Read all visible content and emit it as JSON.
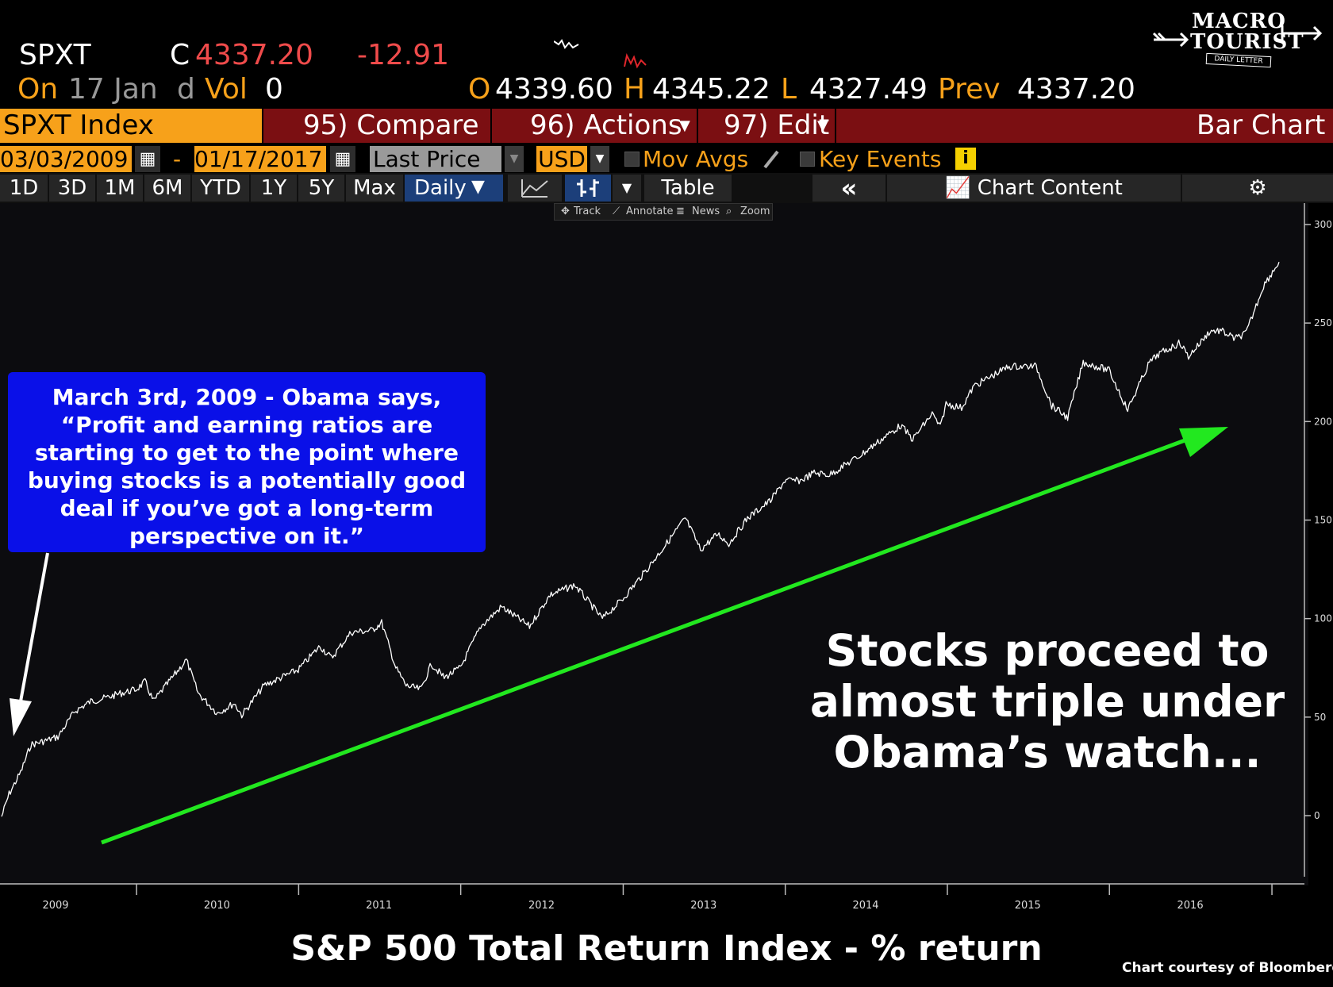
{
  "header": {
    "ticker": "SPXT",
    "close_label": "C",
    "close_value": "4337.20",
    "change": "-12.91",
    "on_label": "On",
    "date": "17 Jan",
    "d_label": "d",
    "vol_label": "Vol",
    "vol_value": "0",
    "open_label": "O",
    "open_value": "4339.60",
    "high_label": "H",
    "high_value": "4345.22",
    "low_label": "L",
    "low_value": "4327.49",
    "prev_label": "Prev",
    "prev_value": "4337.20"
  },
  "logo": {
    "line1": "MACRO",
    "line2": "TOURIST",
    "tagline": "DAILY LETTER"
  },
  "function_bar": {
    "security": "SPXT Index",
    "compare": "95) Compare",
    "actions": "96) Actions",
    "edit": "97) Edit",
    "chart_type": "Bar Chart"
  },
  "controls": {
    "start_date": "03/03/2009",
    "date_sep": "-",
    "end_date": "01/17/2017",
    "field": "Last Price",
    "currency": "USD",
    "mov_avgs": "Mov Avgs",
    "key_events": "Key Events",
    "info_icon": "i"
  },
  "periods": {
    "buttons": [
      "1D",
      "3D",
      "1M",
      "6M",
      "YTD",
      "1Y",
      "5Y",
      "Max"
    ],
    "frequency": "Daily",
    "table": "Table",
    "collapse": "«",
    "chart_content": "Chart Content"
  },
  "tools": {
    "track": "Track",
    "annotate": "Annotate",
    "news": "News",
    "zoom": "Zoom"
  },
  "annotations": {
    "callout_lines": [
      "March 3rd, 2009 - Obama says,",
      "“Profit and earning ratios are",
      "starting to get to the point where",
      "buying stocks is a potentially good",
      "deal if you’ve got a long-term",
      "perspective on it.”"
    ],
    "big_lines": [
      "Stocks proceed to",
      "almost triple under",
      "Obama’s watch..."
    ]
  },
  "footer": {
    "title": "S&P 500 Total Return Index - % return",
    "credit": "Chart courtesy of Bloomberg"
  },
  "colors": {
    "accent_orange": "#f7a11a",
    "negative_red": "#f04b4b",
    "function_bar": "#7b0f12",
    "callout_blue": "#0a10e8",
    "trend_arrow": "#22e81f",
    "line": "#ffffff"
  },
  "chart_data": {
    "type": "line",
    "title": "S&P 500 Total Return Index - % return",
    "xlabel": "",
    "ylabel": "",
    "x_ticks": [
      "2009",
      "2010",
      "2011",
      "2012",
      "2013",
      "2014",
      "2015",
      "2016"
    ],
    "y_ticks": [
      0,
      50,
      100,
      150,
      200,
      250,
      300
    ],
    "ylim": [
      -31,
      302
    ],
    "xlim": [
      "2009-03-03",
      "2017-01-17"
    ],
    "grid": false,
    "legend": "none",
    "series": [
      {
        "x": [
          "2009-03-03",
          "2009-03-20",
          "2009-04-15",
          "2009-05-08",
          "2009-06-10",
          "2009-07-08",
          "2009-08-15",
          "2009-09-20",
          "2009-10-28",
          "2009-11-25",
          "2009-12-31",
          "2010-01-20",
          "2010-02-08",
          "2010-04-23",
          "2010-05-20",
          "2010-07-02",
          "2010-08-09",
          "2010-08-26",
          "2010-10-15",
          "2010-12-31",
          "2011-02-18",
          "2011-03-16",
          "2011-04-29",
          "2011-06-15",
          "2011-07-07",
          "2011-08-08",
          "2011-08-31",
          "2011-10-03",
          "2011-10-27",
          "2011-11-25",
          "2011-12-31",
          "2012-02-15",
          "2012-04-02",
          "2012-06-04",
          "2012-07-20",
          "2012-09-14",
          "2012-11-15",
          "2012-12-31",
          "2013-02-20",
          "2013-04-15",
          "2013-05-21",
          "2013-06-24",
          "2013-08-02",
          "2013-08-27",
          "2013-10-08",
          "2013-11-29",
          "2013-12-31",
          "2014-02-04",
          "2014-03-07",
          "2014-04-11",
          "2014-06-20",
          "2014-07-31",
          "2014-09-18",
          "2014-10-15",
          "2014-11-28",
          "2014-12-16",
          "2014-12-29",
          "2015-02-02",
          "2015-03-02",
          "2015-05-20",
          "2015-07-20",
          "2015-08-24",
          "2015-09-29",
          "2015-11-03",
          "2015-12-31",
          "2016-02-11",
          "2016-03-31",
          "2016-04-20",
          "2016-06-08",
          "2016-06-27",
          "2016-08-15",
          "2016-09-09",
          "2016-10-10",
          "2016-11-04",
          "2016-12-13",
          "2017-01-17"
        ],
        "y": [
          -0.5,
          11,
          22,
          36,
          38,
          40,
          53,
          58,
          60,
          62,
          64,
          68,
          58,
          79,
          62,
          52,
          57,
          51,
          66,
          74,
          86,
          80,
          93,
          94,
          98,
          75,
          66,
          64,
          77,
          70,
          75,
          96,
          106,
          96,
          112,
          117,
          100,
          110,
          124,
          140,
          151,
          135,
          143,
          138,
          151,
          160,
          170,
          170,
          174,
          173,
          183,
          190,
          198,
          191,
          204,
          197,
          209,
          207,
          218,
          228,
          228,
          208,
          202,
          230,
          226,
          206,
          230,
          234,
          240,
          233,
          246,
          246,
          242,
          245,
          269,
          281
        ]
      }
    ]
  }
}
